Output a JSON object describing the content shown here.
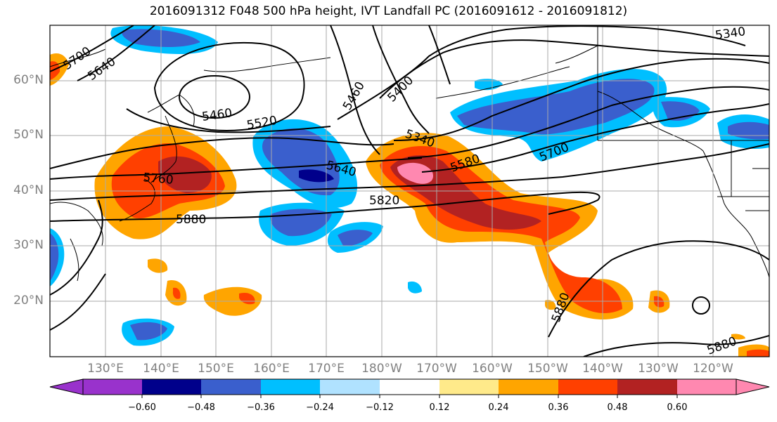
{
  "title": "2016091312 F048 500 hPa height, IVT Landfall PC (2016091612 - 2016091812)",
  "lat_labels": [
    "60°N",
    "50°N",
    "40°N",
    "30°N",
    "20°N"
  ],
  "lon_labels": [
    "130°E",
    "140°E",
    "150°E",
    "160°E",
    "170°E",
    "180°W",
    "170°W",
    "160°W",
    "150°W",
    "140°W",
    "130°W",
    "120°W"
  ],
  "contour_labels": {
    "c5700_w": "5700",
    "c5640_w": "5640",
    "c5460": "5460",
    "c5520": "5520",
    "c5400": "5400",
    "c5460_n": "5460",
    "c5340": "5340",
    "c5340_ne": "5340",
    "c5640": "5640",
    "c5580": "5580",
    "c5700": "5700",
    "c5760": "5760",
    "c5820": "5820",
    "c5880": "5880",
    "c5880_s": "5880",
    "c5880_se": "5880"
  },
  "colorbar": {
    "ticks": [
      "−0.60",
      "−0.48",
      "−0.36",
      "−0.24",
      "−0.12",
      "0.12",
      "0.24",
      "0.36",
      "0.48",
      "0.60"
    ],
    "colors": [
      "#9932cc",
      "#00008b",
      "#3a5fcd",
      "#00bfff",
      "#b0e2ff",
      "#ffffff",
      "#ffea8a",
      "#ffa500",
      "#ff4000",
      "#b22222",
      "#ff88b0"
    ]
  },
  "fill_colors": {
    "neg1": "#00bfff",
    "neg2": "#3a5fcd",
    "neg3": "#00008b",
    "pos1": "#ffea8a",
    "pos2": "#ffa500",
    "pos3": "#ff4000",
    "pos4": "#b22222",
    "pos5": "#ff88b0"
  }
}
